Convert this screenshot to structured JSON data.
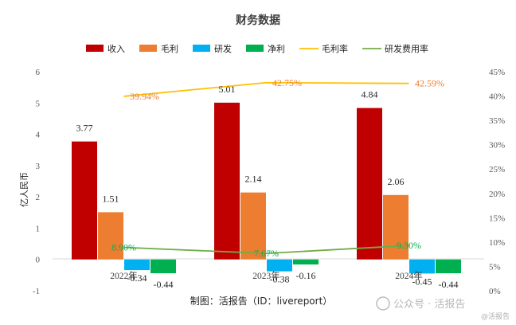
{
  "chart_data": {
    "type": "bar",
    "title": "财务数据",
    "ylabel": "亿人民币",
    "ylim": [
      -1,
      6
    ],
    "y2lim": [
      0,
      45
    ],
    "yticks": [
      "-1",
      "0",
      "1",
      "2",
      "3",
      "4",
      "5",
      "6"
    ],
    "y2ticks": [
      "0%",
      "5%",
      "10%",
      "15%",
      "20%",
      "25%",
      "30%",
      "35%",
      "40%",
      "45%"
    ],
    "categories": [
      "2022年",
      "2023年",
      "2024年"
    ],
    "legend_position": "top",
    "grid": false,
    "series": [
      {
        "name": "收入",
        "type": "bar",
        "color": "#C00000",
        "values": [
          3.77,
          5.01,
          4.84
        ],
        "labels": [
          "3.77",
          "5.01",
          "4.84"
        ]
      },
      {
        "name": "毛利",
        "type": "bar",
        "color": "#ED7D31",
        "values": [
          1.51,
          2.14,
          2.06
        ],
        "labels": [
          "1.51",
          "2.14",
          "2.06"
        ]
      },
      {
        "name": "研发",
        "type": "bar",
        "color": "#00B0F0",
        "values": [
          -0.34,
          -0.38,
          -0.45
        ],
        "labels": [
          "-0.34",
          "-0.38",
          "-0.45"
        ]
      },
      {
        "name": "净利",
        "type": "bar",
        "color": "#00B050",
        "values": [
          -0.44,
          -0.16,
          -0.44
        ],
        "labels": [
          "-0.44",
          "-0.16",
          "-0.44"
        ]
      },
      {
        "name": "毛利率",
        "type": "line",
        "axis": "right",
        "color": "#FFC000",
        "values": [
          39.94,
          42.75,
          42.59
        ],
        "labels": [
          "39.94%",
          "42.75%",
          "42.59%"
        ]
      },
      {
        "name": "研发费用率",
        "type": "line",
        "axis": "right",
        "color": "#70AD47",
        "values": [
          8.9,
          7.67,
          9.3
        ],
        "labels": [
          "8.90%",
          "7.67%",
          "9.30%"
        ]
      }
    ]
  },
  "footer": "制图：活报告（ID：livereport）",
  "watermark": {
    "text": "公众号 · 活报告",
    "sub": "@活报告"
  }
}
